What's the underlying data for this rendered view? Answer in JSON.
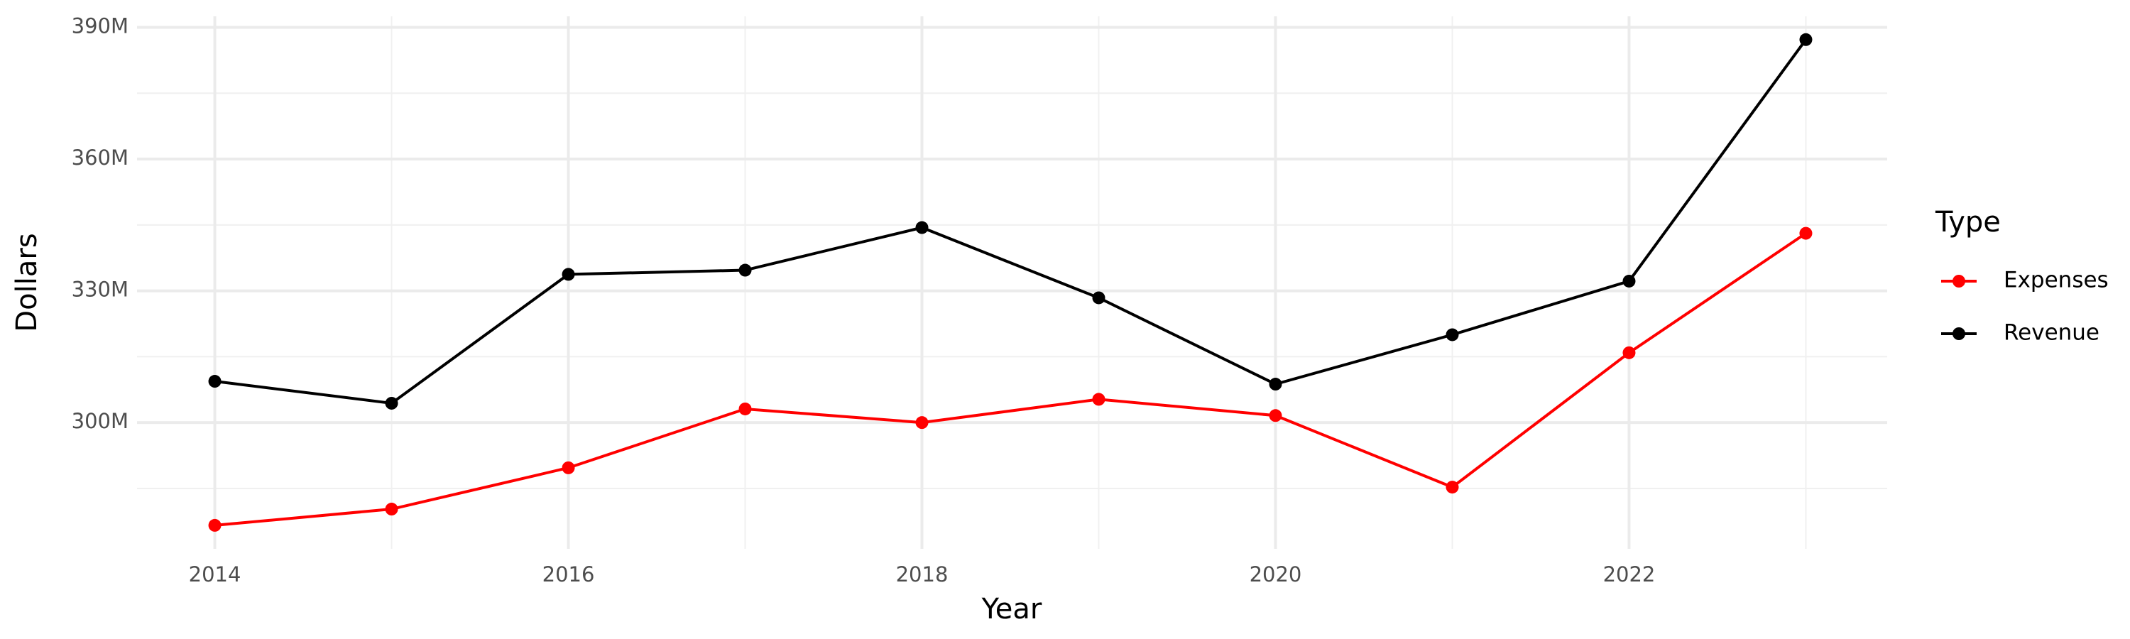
{
  "chart_data": {
    "type": "line",
    "x_label": "Year",
    "y_label": "Dollars",
    "legend_title": "Type",
    "legend": "right",
    "grid": true,
    "x": [
      2014,
      2015,
      2016,
      2017,
      2018,
      2019,
      2020,
      2021,
      2022,
      2023
    ],
    "series": [
      {
        "name": "Expenses",
        "color": "#ff0000",
        "values": [
          276600000,
          280300000,
          289700000,
          303100000,
          300000000,
          305300000,
          301600000,
          285300000,
          315900000,
          343100000
        ]
      },
      {
        "name": "Revenue",
        "color": "#000000",
        "values": [
          309400000,
          304400000,
          333750000,
          334700000,
          344400000,
          328400000,
          308750000,
          320000000,
          332200000,
          387200000
        ]
      }
    ],
    "xlim": [
      2013.56,
      2023.46
    ],
    "xticks": [
      2014,
      2016,
      2018,
      2020,
      2022
    ],
    "x_minor_ticks": [
      2015,
      2017,
      2019,
      2021,
      2023
    ],
    "ylim": [
      271250000,
      392500000
    ],
    "yticks": [
      {
        "value": 300000000,
        "label": "300M"
      },
      {
        "value": 330000000,
        "label": "330M"
      },
      {
        "value": 360000000,
        "label": "360M"
      },
      {
        "value": 390000000,
        "label": "390M"
      }
    ],
    "y_minor_ticks": [
      285000000,
      315000000,
      345000000,
      375000000
    ]
  }
}
